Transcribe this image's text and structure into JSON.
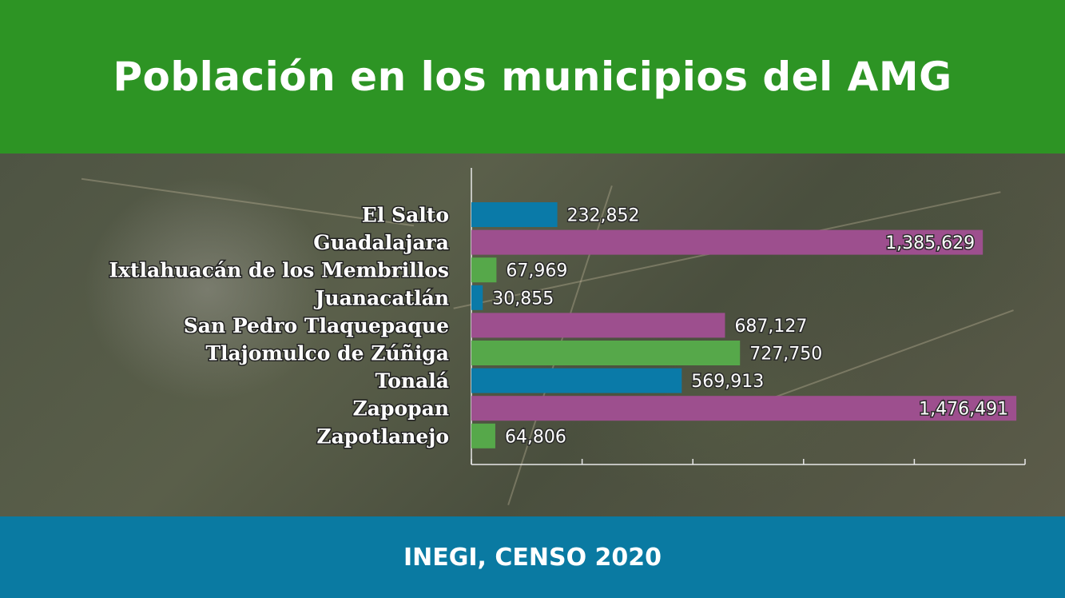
{
  "header": {
    "title": "Población en los municipios del AMG"
  },
  "footer": {
    "source": "INEGI, CENSO 2020"
  },
  "colors": {
    "header_bg": "#2d9424",
    "footer_bg": "#0a7aa2",
    "bar_blue": "#0a7aa8",
    "bar_magenta": "#9d4f8e",
    "bar_green": "#56a84a"
  },
  "chart_data": {
    "type": "bar",
    "orientation": "horizontal",
    "categories": [
      "El Salto",
      "Guadalajara",
      "Ixtlahuacán de los Membrillos",
      "Juanacatlán",
      "San Pedro Tlaquepaque",
      "Tlajomulco de Zúñiga",
      "Tonalá",
      "Zapopan",
      "Zapotlanejo"
    ],
    "values": [
      232852,
      1385629,
      67969,
      30855,
      687127,
      727750,
      569913,
      1476491,
      64806
    ],
    "value_labels": [
      "232,852",
      "1,385,629",
      "67,969",
      "30,855",
      "687,127",
      "727,750",
      "569,913",
      "1,476,491",
      "64,806"
    ],
    "bar_colors": [
      "#0a7aa8",
      "#9d4f8e",
      "#56a84a",
      "#0a7aa8",
      "#9d4f8e",
      "#56a84a",
      "#0a7aa8",
      "#9d4f8e",
      "#56a84a"
    ],
    "xlim": [
      0,
      1500000
    ],
    "x_ticks": [
      0,
      300000,
      600000,
      900000,
      1200000,
      1500000
    ],
    "grid": false,
    "title": "",
    "xlabel": "",
    "ylabel": ""
  }
}
